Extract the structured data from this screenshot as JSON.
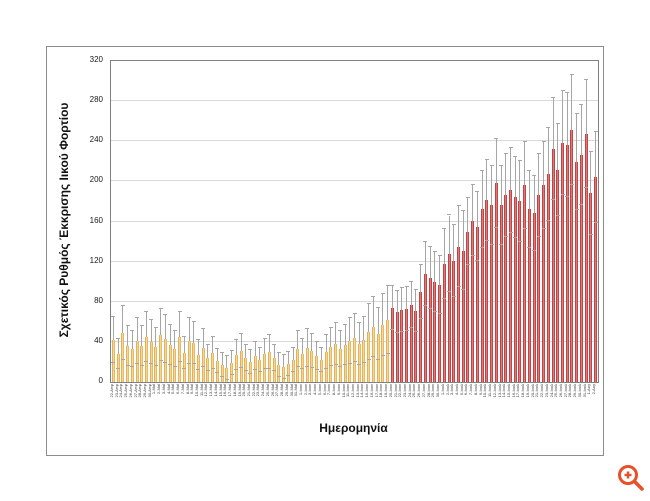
{
  "page": {
    "background": "#ffffff"
  },
  "chart": {
    "y_axis": {
      "title": "Σχετικός Ρυθμός Έκκρισης Ιικού Φορτίου"
    },
    "x_axis": {
      "title": "Ημερομηνία"
    },
    "colors": {
      "bar_early": "#e8a63c",
      "bar_late": "#c21e1e",
      "error_bar": "#a6a6a6",
      "gridline": "#d9d9d9",
      "plot_border": "#808080",
      "box_border": "#8c8c8c"
    }
  },
  "zoom_icon": {
    "name": "zoom-in-icon",
    "color": "#e8502a"
  },
  "chart_data": {
    "type": "bar",
    "title": "",
    "xlabel": "Ημερομηνία",
    "ylabel": "Σχετικός Ρυθμός Έκκρισης Ιικού Φορτίου",
    "ylim": [
      0,
      320
    ],
    "yticks": [
      0,
      40,
      80,
      120,
      160,
      200,
      240,
      280,
      320
    ],
    "grid": true,
    "legend": false,
    "split_index": 59,
    "categories": [
      "22-Απρ",
      "23-Απρ",
      "24-Απρ",
      "25-Απρ",
      "26-Απρ",
      "27-Απρ",
      "28-Απρ",
      "29-Απρ",
      "30-Απρ",
      "1-Μαϊ",
      "2-Μαϊ",
      "3-Μαϊ",
      "4-Μαϊ",
      "5-Μαϊ",
      "6-Μαϊ",
      "7-Μαϊ",
      "8-Μαϊ",
      "9-Μαϊ",
      "10-Μαϊ",
      "11-Μαϊ",
      "12-Μαϊ",
      "13-Μαϊ",
      "14-Μαϊ",
      "15-Μαϊ",
      "16-Μαϊ",
      "17-Μαϊ",
      "18-Μαϊ",
      "19-Μαϊ",
      "20-Μαϊ",
      "21-Μαϊ",
      "22-Μαϊ",
      "23-Μαϊ",
      "24-Μαϊ",
      "25-Μαϊ",
      "26-Μαϊ",
      "27-Μαϊ",
      "28-Μαϊ",
      "29-Μαϊ",
      "30-Μαϊ",
      "31-Μαϊ",
      "1-Ιουν",
      "2-Ιουν",
      "3-Ιουν",
      "4-Ιουν",
      "5-Ιουν",
      "6-Ιουν",
      "7-Ιουν",
      "8-Ιουν",
      "9-Ιουν",
      "10-Ιουν",
      "11-Ιουν",
      "12-Ιουν",
      "13-Ιουν",
      "14-Ιουν",
      "15-Ιουν",
      "16-Ιουν",
      "17-Ιουν",
      "18-Ιουν",
      "19-Ιουν",
      "20-Ιουν",
      "21-Ιουν",
      "22-Ιουν",
      "23-Ιουν",
      "24-Ιουν",
      "25-Ιουν",
      "26-Ιουν",
      "27-Ιουν",
      "28-Ιουν",
      "29-Ιουν",
      "30-Ιουν",
      "1-Ιουλ",
      "2-Ιουλ",
      "3-Ιουλ",
      "4-Ιουλ",
      "5-Ιουλ",
      "6-Ιουλ",
      "7-Ιουλ",
      "8-Ιουλ",
      "9-Ιουλ",
      "10-Ιουλ",
      "11-Ιουλ",
      "12-Ιουλ",
      "13-Ιουλ",
      "14-Ιουλ",
      "15-Ιουλ",
      "16-Ιουλ",
      "17-Ιουλ",
      "18-Ιουλ",
      "19-Ιουλ",
      "20-Ιουλ",
      "21-Ιουλ",
      "22-Ιουλ",
      "23-Ιουλ",
      "24-Ιουλ",
      "25-Ιουλ",
      "26-Ιουλ",
      "27-Ιουλ",
      "28-Ιουλ",
      "29-Ιουλ",
      "30-Ιουλ",
      "31-Ιουλ",
      "1-Αυγ",
      "2-Αυγ"
    ],
    "values": [
      42,
      28,
      49,
      36,
      33,
      41,
      36,
      45,
      40,
      35,
      47,
      43,
      37,
      33,
      45,
      29,
      41,
      39,
      27,
      34,
      24,
      29,
      21,
      17,
      14,
      19,
      27,
      31,
      24,
      20,
      26,
      22,
      28,
      30,
      24,
      17,
      15,
      18,
      22,
      33,
      28,
      34,
      31,
      26,
      22,
      30,
      35,
      38,
      33,
      37,
      41,
      44,
      38,
      42,
      50,
      55,
      48,
      57,
      62,
      74,
      70,
      72,
      73,
      77,
      71,
      90,
      108,
      104,
      100,
      97,
      118,
      128,
      121,
      135,
      131,
      150,
      161,
      155,
      172,
      181,
      176,
      198,
      176,
      186,
      191,
      184,
      180,
      196,
      172,
      168,
      186,
      196,
      207,
      232,
      211,
      238,
      236,
      251,
      219,
      226,
      247,
      188,
      204
    ],
    "errors": [
      23,
      15,
      27,
      20,
      18,
      23,
      20,
      25,
      22,
      19,
      26,
      24,
      20,
      18,
      25,
      16,
      23,
      21,
      15,
      19,
      13,
      16,
      12,
      12,
      12,
      12,
      15,
      17,
      13,
      12,
      14,
      12,
      15,
      17,
      13,
      12,
      12,
      12,
      12,
      18,
      15,
      19,
      17,
      14,
      12,
      17,
      19,
      21,
      18,
      20,
      23,
      24,
      21,
      23,
      28,
      30,
      26,
      31,
      34,
      22,
      21,
      22,
      22,
      23,
      21,
      27,
      32,
      31,
      30,
      29,
      35,
      38,
      36,
      40,
      39,
      33,
      35,
      34,
      38,
      40,
      39,
      44,
      39,
      41,
      42,
      40,
      40,
      43,
      38,
      37,
      41,
      43,
      46,
      51,
      46,
      52,
      52,
      55,
      48,
      50,
      54,
      41,
      45
    ]
  }
}
